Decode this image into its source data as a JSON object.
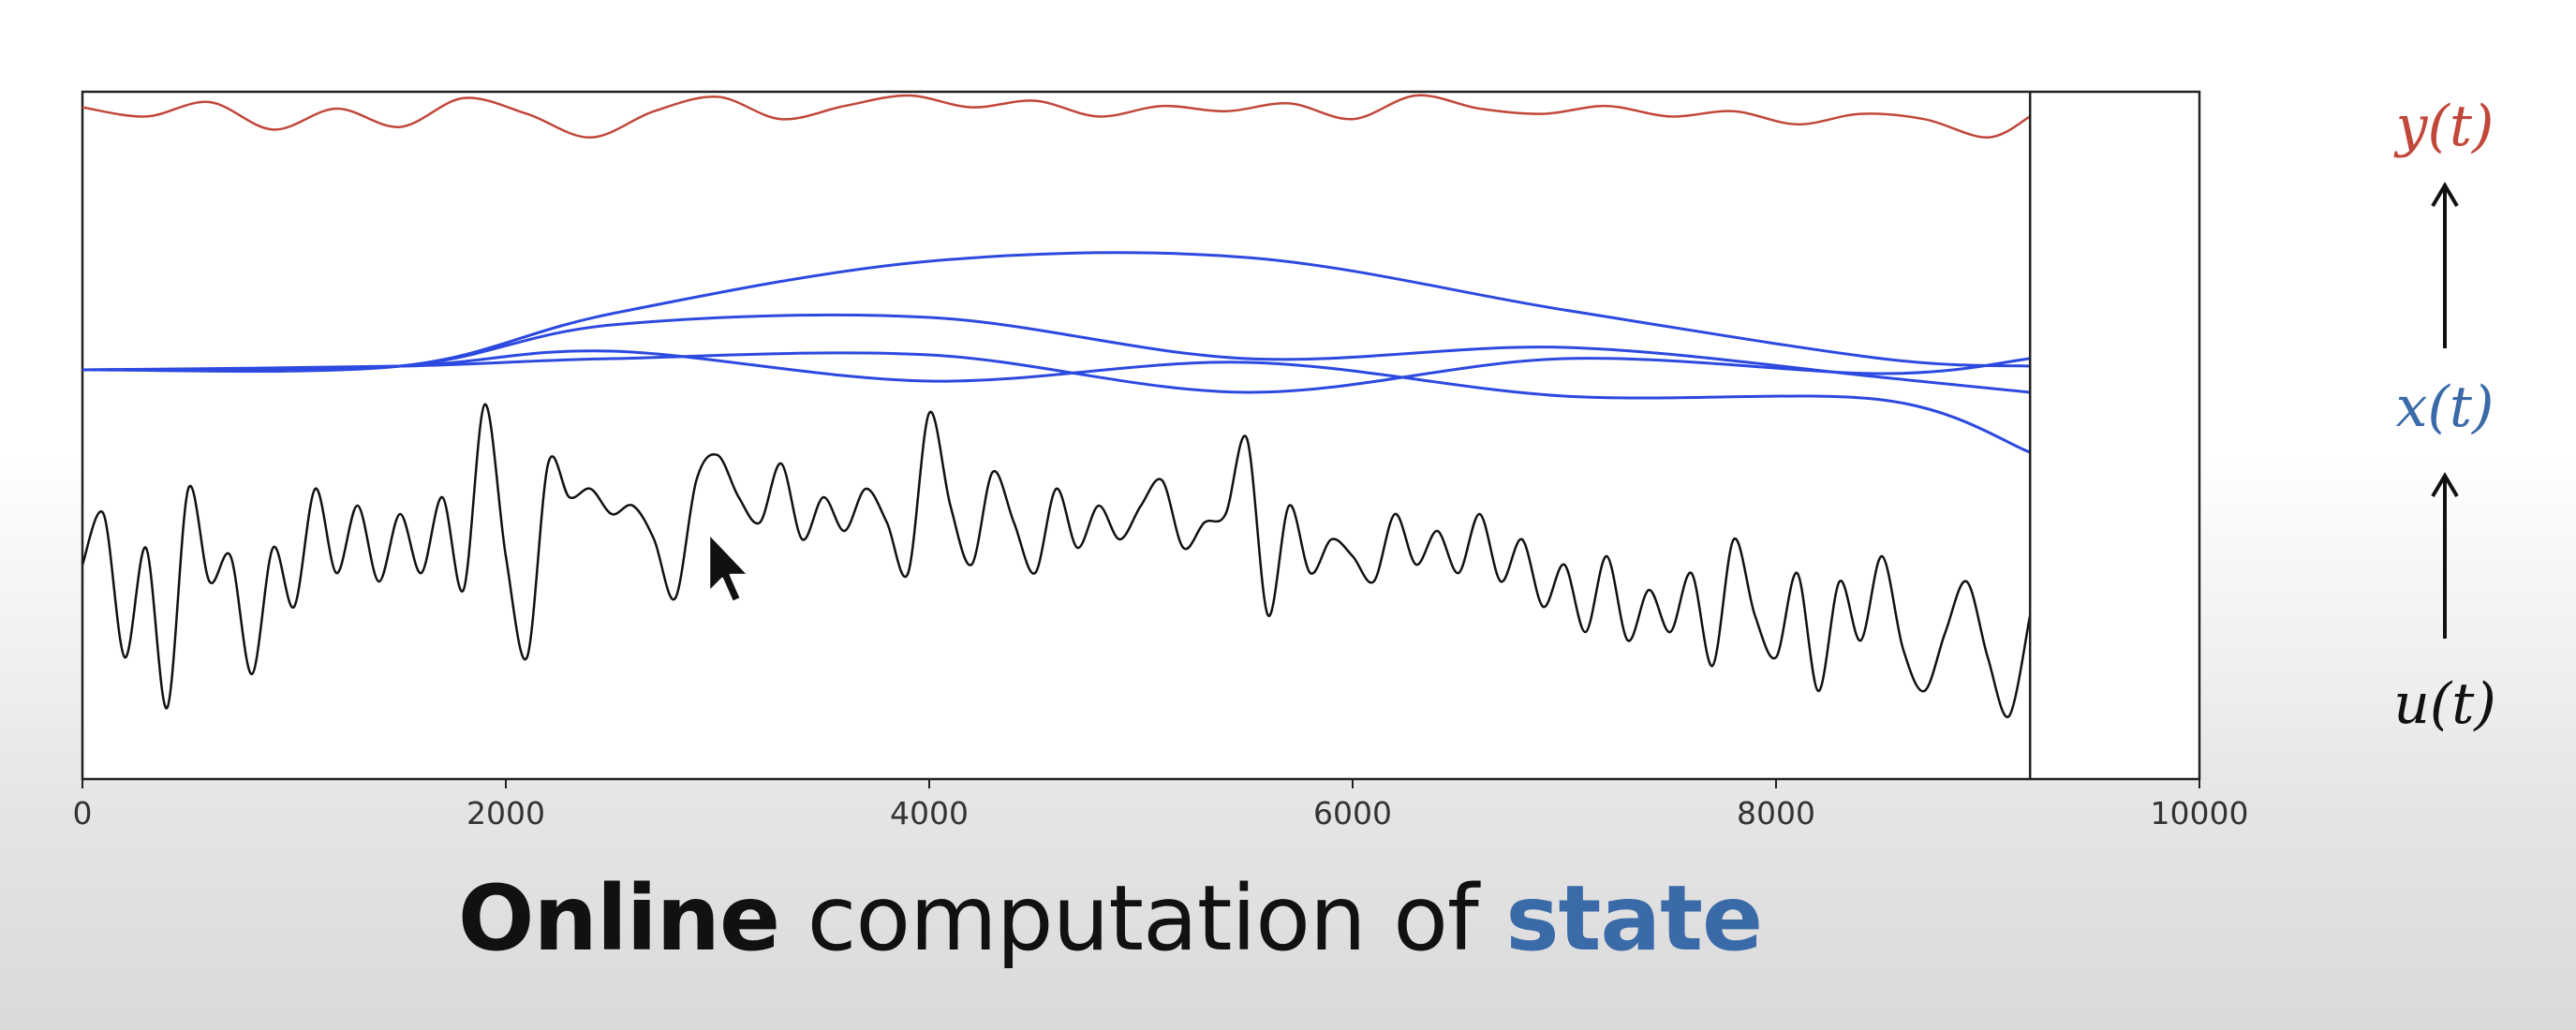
{
  "chart_data": {
    "type": "line",
    "xlim": [
      0,
      10000
    ],
    "x_ticks": [
      "0",
      "2000",
      "4000",
      "6000",
      "8000",
      "10000"
    ],
    "cursor_x": 9200,
    "grid": false,
    "signals": [
      {
        "label": "y(t)",
        "color": "#c0473a",
        "keypoints": [
          [
            0,
            0.55
          ],
          [
            300,
            0.2
          ],
          [
            600,
            0.75
          ],
          [
            900,
            -0.3
          ],
          [
            1200,
            0.5
          ],
          [
            1500,
            -0.2
          ],
          [
            1800,
            0.9
          ],
          [
            2100,
            0.3
          ],
          [
            2400,
            -0.6
          ],
          [
            2700,
            0.4
          ],
          [
            3000,
            0.95
          ],
          [
            3300,
            0.1
          ],
          [
            3600,
            0.6
          ],
          [
            3900,
            1.0
          ],
          [
            4200,
            0.55
          ],
          [
            4500,
            0.8
          ],
          [
            4800,
            0.2
          ],
          [
            5100,
            0.6
          ],
          [
            5400,
            0.4
          ],
          [
            5700,
            0.7
          ],
          [
            6000,
            0.1
          ],
          [
            6300,
            1.0
          ],
          [
            6600,
            0.5
          ],
          [
            6900,
            0.3
          ],
          [
            7200,
            0.6
          ],
          [
            7500,
            0.2
          ],
          [
            7800,
            0.4
          ],
          [
            8100,
            -0.1
          ],
          [
            8400,
            0.3
          ],
          [
            8700,
            0.1
          ],
          [
            9000,
            -0.6
          ],
          [
            9200,
            0.2
          ]
        ]
      },
      {
        "label": "x(t)",
        "color": "#3b6aa8",
        "lines": [
          {
            "keypoints": [
              [
                0,
                0
              ],
              [
                1500,
                0.1
              ],
              [
                2500,
                1.5
              ],
              [
                4000,
                2.9
              ],
              [
                5500,
                3.0
              ],
              [
                7000,
                1.6
              ],
              [
                8500,
                0.3
              ],
              [
                9200,
                0.1
              ]
            ]
          },
          {
            "keypoints": [
              [
                0,
                0
              ],
              [
                1500,
                0.1
              ],
              [
                2500,
                1.2
              ],
              [
                4000,
                1.4
              ],
              [
                5500,
                0.3
              ],
              [
                7000,
                0.6
              ],
              [
                8500,
                -0.2
              ],
              [
                9200,
                -0.6
              ]
            ]
          },
          {
            "keypoints": [
              [
                0,
                0
              ],
              [
                1500,
                0.1
              ],
              [
                2500,
                0.5
              ],
              [
                4000,
                -0.3
              ],
              [
                5500,
                0.2
              ],
              [
                7000,
                -0.7
              ],
              [
                8500,
                -0.8
              ],
              [
                9200,
                -2.2
              ]
            ]
          },
          {
            "keypoints": [
              [
                0,
                0
              ],
              [
                1500,
                0.1
              ],
              [
                2500,
                0.3
              ],
              [
                4000,
                0.4
              ],
              [
                5500,
                -0.6
              ],
              [
                7000,
                0.3
              ],
              [
                8500,
                -0.1
              ],
              [
                9200,
                0.3
              ]
            ]
          }
        ]
      },
      {
        "label": "u(t)",
        "color": "#111111",
        "keypoints": [
          [
            0,
            0.3
          ],
          [
            100,
            0.9
          ],
          [
            200,
            -0.8
          ],
          [
            300,
            0.5
          ],
          [
            400,
            -1.4
          ],
          [
            500,
            1.2
          ],
          [
            600,
            0.1
          ],
          [
            700,
            0.4
          ],
          [
            800,
            -1.0
          ],
          [
            900,
            0.5
          ],
          [
            1000,
            -0.2
          ],
          [
            1100,
            1.2
          ],
          [
            1200,
            0.2
          ],
          [
            1300,
            1.0
          ],
          [
            1400,
            0.1
          ],
          [
            1500,
            0.9
          ],
          [
            1600,
            0.2
          ],
          [
            1700,
            1.1
          ],
          [
            1800,
            0.0
          ],
          [
            1900,
            2.2
          ],
          [
            2000,
            0.4
          ],
          [
            2100,
            -0.8
          ],
          [
            2200,
            1.5
          ],
          [
            2300,
            1.1
          ],
          [
            2400,
            1.2
          ],
          [
            2500,
            0.9
          ],
          [
            2600,
            1.0
          ],
          [
            2700,
            0.6
          ],
          [
            2800,
            -0.1
          ],
          [
            2900,
            1.3
          ],
          [
            3000,
            1.6
          ],
          [
            3100,
            1.1
          ],
          [
            3200,
            0.8
          ],
          [
            3300,
            1.5
          ],
          [
            3400,
            0.6
          ],
          [
            3500,
            1.1
          ],
          [
            3600,
            0.7
          ],
          [
            3700,
            1.2
          ],
          [
            3800,
            0.8
          ],
          [
            3900,
            0.2
          ],
          [
            4000,
            2.1
          ],
          [
            4100,
            1.0
          ],
          [
            4200,
            0.3
          ],
          [
            4300,
            1.4
          ],
          [
            4400,
            0.8
          ],
          [
            4500,
            0.2
          ],
          [
            4600,
            1.2
          ],
          [
            4700,
            0.5
          ],
          [
            4800,
            1.0
          ],
          [
            4900,
            0.6
          ],
          [
            5000,
            1.0
          ],
          [
            5100,
            1.3
          ],
          [
            5200,
            0.5
          ],
          [
            5300,
            0.8
          ],
          [
            5400,
            0.9
          ],
          [
            5500,
            1.8
          ],
          [
            5600,
            -0.3
          ],
          [
            5700,
            1.0
          ],
          [
            5800,
            0.2
          ],
          [
            5900,
            0.6
          ],
          [
            6000,
            0.4
          ],
          [
            6100,
            0.1
          ],
          [
            6200,
            0.9
          ],
          [
            6300,
            0.3
          ],
          [
            6400,
            0.7
          ],
          [
            6500,
            0.2
          ],
          [
            6600,
            0.9
          ],
          [
            6700,
            0.1
          ],
          [
            6800,
            0.6
          ],
          [
            6900,
            -0.2
          ],
          [
            7000,
            0.3
          ],
          [
            7100,
            -0.5
          ],
          [
            7200,
            0.4
          ],
          [
            7300,
            -0.6
          ],
          [
            7400,
            0.0
          ],
          [
            7500,
            -0.5
          ],
          [
            7600,
            0.2
          ],
          [
            7700,
            -0.9
          ],
          [
            7800,
            0.6
          ],
          [
            7900,
            -0.3
          ],
          [
            8000,
            -0.8
          ],
          [
            8100,
            0.2
          ],
          [
            8200,
            -1.2
          ],
          [
            8300,
            0.1
          ],
          [
            8400,
            -0.6
          ],
          [
            8500,
            0.4
          ],
          [
            8600,
            -0.7
          ],
          [
            8700,
            -1.2
          ],
          [
            8800,
            -0.5
          ],
          [
            8900,
            0.1
          ],
          [
            9000,
            -0.8
          ],
          [
            9100,
            -1.5
          ],
          [
            9200,
            -0.3
          ]
        ]
      }
    ]
  },
  "caption": {
    "bold": "Online",
    "plain": " computation of ",
    "accent": "state"
  }
}
